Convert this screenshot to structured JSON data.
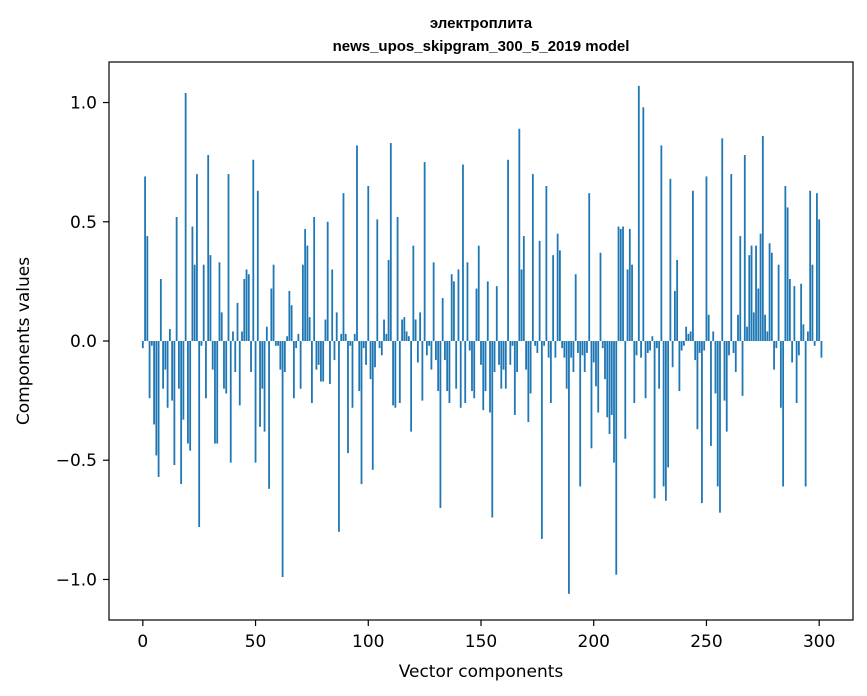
{
  "chart_data": {
    "type": "bar",
    "title": "электроплита",
    "subtitle": "news_upos_skipgram_300_5_2019 model",
    "xlabel": "Vector components",
    "ylabel": "Components values",
    "xlim": [
      -15,
      315
    ],
    "ylim": [
      -1.17,
      1.17
    ],
    "xticks": [
      0,
      50,
      100,
      150,
      200,
      250,
      300
    ],
    "xtick_labels": [
      "0",
      "50",
      "100",
      "150",
      "200",
      "250",
      "300"
    ],
    "yticks": [
      -1.0,
      -0.5,
      0.0,
      0.5,
      1.0
    ],
    "ytick_labels": [
      "−1.0",
      "−0.5",
      "0.0",
      "0.5",
      "1.0"
    ],
    "grid": false,
    "bar_color": "#1f77b4",
    "values": [
      -0.03,
      0.69,
      0.44,
      -0.24,
      -0.02,
      -0.35,
      -0.48,
      -0.57,
      0.26,
      -0.2,
      -0.12,
      -0.28,
      0.05,
      -0.25,
      -0.52,
      0.52,
      -0.2,
      -0.6,
      -0.33,
      1.04,
      -0.43,
      -0.46,
      0.48,
      0.32,
      0.7,
      -0.78,
      -0.02,
      0.32,
      -0.24,
      0.78,
      0.36,
      -0.12,
      -0.43,
      -0.43,
      0.33,
      0.12,
      -0.2,
      -0.22,
      0.7,
      -0.51,
      0.04,
      -0.13,
      0.16,
      -0.27,
      0.04,
      0.26,
      0.3,
      0.28,
      -0.13,
      0.76,
      -0.51,
      0.63,
      -0.36,
      -0.2,
      -0.38,
      0.06,
      -0.62,
      0.22,
      0.32,
      -0.02,
      -0.02,
      -0.12,
      -0.99,
      -0.13,
      0.02,
      0.21,
      0.15,
      -0.24,
      -0.03,
      0.03,
      -0.2,
      0.32,
      0.47,
      0.4,
      0.1,
      -0.26,
      0.52,
      -0.12,
      -0.1,
      -0.17,
      -0.17,
      0.09,
      0.5,
      -0.18,
      0.3,
      -0.08,
      0.12,
      -0.8,
      0.03,
      0.62,
      0.03,
      -0.47,
      -0.02,
      -0.28,
      0.03,
      0.82,
      -0.21,
      -0.6,
      -0.03,
      -0.1,
      0.65,
      -0.16,
      -0.54,
      -0.11,
      0.51,
      -0.03,
      -0.06,
      0.09,
      0.03,
      0.34,
      0.83,
      -0.27,
      -0.28,
      0.52,
      -0.26,
      0.09,
      0.1,
      0.04,
      0.02,
      -0.38,
      0.4,
      0.09,
      -0.09,
      0.12,
      -0.25,
      0.75,
      -0.06,
      -0.02,
      -0.12,
      0.33,
      -0.08,
      -0.21,
      -0.7,
      0.18,
      -0.08,
      -0.21,
      -0.26,
      0.28,
      0.25,
      -0.2,
      0.3,
      -0.28,
      0.74,
      -0.26,
      0.33,
      -0.04,
      -0.21,
      -0.24,
      0.22,
      0.4,
      -0.1,
      -0.29,
      -0.21,
      0.25,
      -0.3,
      -0.74,
      -0.13,
      0.23,
      -0.1,
      -0.2,
      -0.12,
      -0.2,
      0.76,
      -0.1,
      -0.02,
      -0.31,
      -0.13,
      0.89,
      0.3,
      0.44,
      -0.12,
      -0.34,
      -0.22,
      0.7,
      -0.02,
      -0.05,
      0.42,
      -0.83,
      -0.02,
      0.65,
      -0.07,
      -0.26,
      0.36,
      -0.07,
      0.45,
      0.38,
      -0.03,
      -0.07,
      -0.2,
      -1.06,
      -0.07,
      -0.13,
      0.28,
      -0.05,
      -0.61,
      -0.06,
      -0.13,
      -0.05,
      0.62,
      -0.45,
      -0.09,
      -0.19,
      -0.3,
      0.37,
      -0.03,
      -0.16,
      -0.32,
      -0.39,
      -0.31,
      -0.51,
      -0.98,
      0.48,
      0.47,
      0.48,
      -0.41,
      0.3,
      0.47,
      0.32,
      -0.26,
      -0.06,
      1.07,
      -0.07,
      0.98,
      -0.24,
      -0.05,
      -0.04,
      0.02,
      -0.66,
      -0.03,
      -0.2,
      0.82,
      -0.61,
      -0.67,
      -0.53,
      0.68,
      -0.11,
      0.21,
      0.34,
      -0.21,
      -0.04,
      -0.02,
      0.06,
      0.03,
      0.04,
      0.63,
      -0.08,
      -0.37,
      -0.05,
      -0.68,
      -0.04,
      0.69,
      0.11,
      -0.44,
      0.04,
      -0.22,
      -0.61,
      -0.72,
      0.85,
      -0.25,
      -0.38,
      -0.06,
      0.7,
      -0.05,
      -0.13,
      0.11,
      0.44,
      -0.23,
      0.78,
      0.06,
      0.36,
      0.4,
      0.12,
      0.4,
      0.22,
      0.45,
      0.86,
      0.11,
      0.04,
      0.41,
      0.37,
      -0.12,
      -0.03,
      0.32,
      -0.28,
      -0.61,
      0.65,
      0.56,
      0.26,
      -0.09,
      0.23,
      -0.26,
      -0.06,
      0.24,
      0.07,
      -0.61,
      0.04,
      0.63,
      0.32,
      -0.02,
      0.62,
      0.51,
      -0.07
    ]
  }
}
